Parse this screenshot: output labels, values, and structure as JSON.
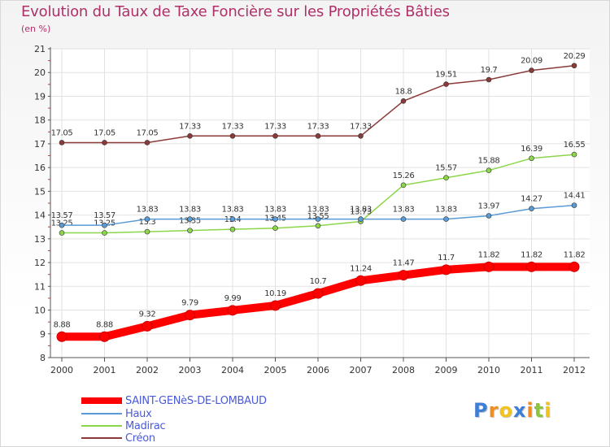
{
  "title": "Evolution du Taux de Taxe Foncière sur les Propriétés Bâties",
  "unit": "(en %)",
  "logo": "Proxiti",
  "chart_data": {
    "type": "line",
    "title": "Evolution du Taux de Taxe Foncière sur les Propriétés Bâties",
    "ylabel": "(en %)",
    "xlabel": "",
    "ylim": [
      8,
      21
    ],
    "yticks": [
      "8",
      "9",
      "10",
      "11",
      "12",
      "13",
      "14",
      "15",
      "16",
      "17",
      "18",
      "19",
      "20",
      "21"
    ],
    "categories": [
      "2000",
      "2001",
      "2002",
      "2003",
      "2004",
      "2005",
      "2006",
      "2007",
      "2008",
      "2009",
      "2010",
      "2011",
      "2012"
    ],
    "grid": true,
    "legend_position": "bottom-left",
    "series": [
      {
        "name": "SAINT-GENèS-DE-LOMBAUD",
        "color": "#ff0000",
        "values": [
          8.88,
          8.88,
          9.32,
          9.79,
          9.99,
          10.19,
          10.7,
          11.24,
          11.47,
          11.7,
          11.82,
          11.82,
          11.82
        ],
        "labels": [
          "8.88",
          "8.88",
          "9.32",
          "9.79",
          "9.99",
          "10.19",
          "10.7",
          "11.24",
          "11.47",
          "11.7",
          "11.82",
          "11.82",
          "11.82"
        ]
      },
      {
        "name": "Haux",
        "color": "#5b9bd5",
        "values": [
          13.57,
          13.57,
          13.83,
          13.83,
          13.83,
          13.83,
          13.83,
          13.83,
          13.83,
          13.83,
          13.97,
          14.27,
          14.41
        ],
        "labels": [
          "13.57",
          "13.57",
          "13.83",
          "13.83",
          "13.83",
          "13.83",
          "13.83",
          "13.83",
          "13.83",
          "13.83",
          "13.97",
          "14.27",
          "14.41"
        ]
      },
      {
        "name": "Madirac",
        "color": "#8cd64a",
        "values": [
          13.25,
          13.25,
          13.3,
          13.35,
          13.4,
          13.45,
          13.55,
          13.73,
          15.26,
          15.57,
          15.88,
          16.39,
          16.55
        ],
        "labels": [
          "13.25",
          "13.25",
          "13.3",
          "13.35",
          "13.4",
          "13.45",
          "13.55",
          "13.73",
          "15.26",
          "15.57",
          "15.88",
          "16.39",
          "16.55"
        ]
      },
      {
        "name": "Créon",
        "color": "#8b3a3a",
        "values": [
          17.05,
          17.05,
          17.05,
          17.33,
          17.33,
          17.33,
          17.33,
          17.33,
          18.8,
          19.51,
          19.7,
          20.09,
          20.29
        ],
        "labels": [
          "17.05",
          "17.05",
          "17.05",
          "17.33",
          "17.33",
          "17.33",
          "17.33",
          "17.33",
          "18.8",
          "19.51",
          "19.7",
          "20.09",
          "20.29"
        ]
      }
    ]
  }
}
